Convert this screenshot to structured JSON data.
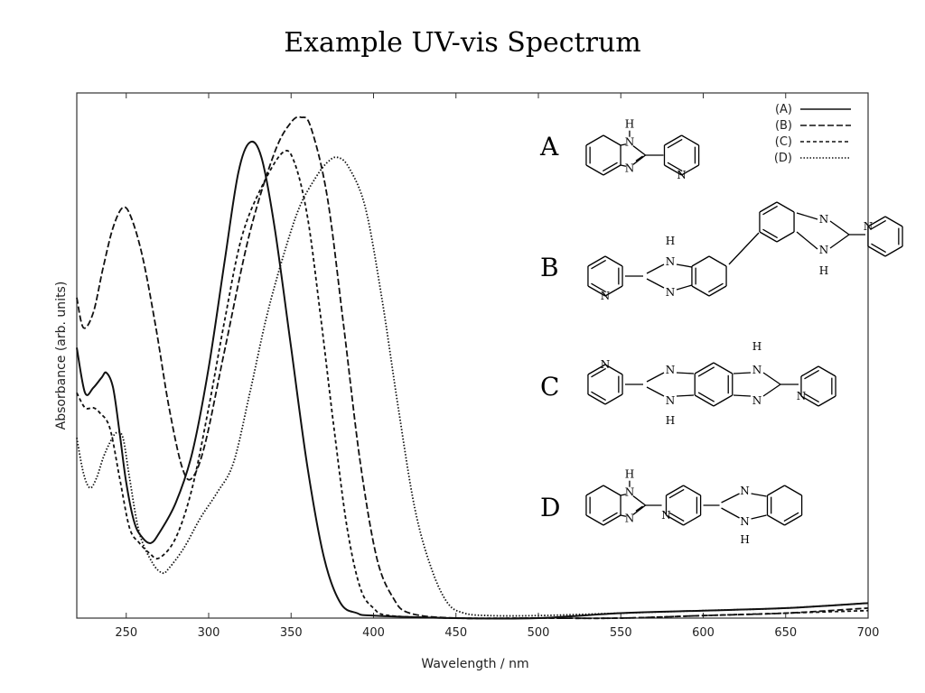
{
  "chart_data": {
    "type": "line",
    "title": "Example UV-vis Spectrum",
    "xlabel": "Wavelength  / nm",
    "ylabel": "Absorbance  (arb. units)",
    "xlim": [
      220,
      700
    ],
    "ylim": [
      0,
      1.0
    ],
    "xticks": [
      250,
      300,
      350,
      400,
      450,
      500,
      550,
      600,
      650,
      700
    ],
    "legend_position": "top-right",
    "series": [
      {
        "name": "(A)",
        "dash": "solid",
        "points": [
          [
            220,
            0.54
          ],
          [
            225,
            0.45
          ],
          [
            230,
            0.46
          ],
          [
            235,
            0.48
          ],
          [
            238,
            0.49
          ],
          [
            242,
            0.46
          ],
          [
            246,
            0.37
          ],
          [
            250,
            0.27
          ],
          [
            255,
            0.19
          ],
          [
            260,
            0.16
          ],
          [
            265,
            0.15
          ],
          [
            270,
            0.17
          ],
          [
            280,
            0.23
          ],
          [
            290,
            0.33
          ],
          [
            300,
            0.5
          ],
          [
            310,
            0.72
          ],
          [
            318,
            0.89
          ],
          [
            325,
            0.95
          ],
          [
            332,
            0.92
          ],
          [
            340,
            0.78
          ],
          [
            350,
            0.54
          ],
          [
            360,
            0.3
          ],
          [
            370,
            0.12
          ],
          [
            380,
            0.03
          ],
          [
            390,
            0.01
          ],
          [
            400,
            0.005
          ],
          [
            450,
            0.0
          ],
          [
            500,
            0.0
          ],
          [
            550,
            0.01
          ],
          [
            600,
            0.015
          ],
          [
            650,
            0.02
          ],
          [
            700,
            0.03
          ]
        ]
      },
      {
        "name": "(B)",
        "dash": "dashed",
        "points": [
          [
            220,
            0.64
          ],
          [
            224,
            0.58
          ],
          [
            230,
            0.61
          ],
          [
            236,
            0.7
          ],
          [
            242,
            0.78
          ],
          [
            248,
            0.82
          ],
          [
            253,
            0.8
          ],
          [
            260,
            0.72
          ],
          [
            268,
            0.58
          ],
          [
            276,
            0.42
          ],
          [
            284,
            0.3
          ],
          [
            290,
            0.28
          ],
          [
            298,
            0.35
          ],
          [
            310,
            0.54
          ],
          [
            325,
            0.77
          ],
          [
            340,
            0.93
          ],
          [
            350,
            0.99
          ],
          [
            356,
            1.0
          ],
          [
            362,
            0.98
          ],
          [
            372,
            0.84
          ],
          [
            382,
            0.58
          ],
          [
            392,
            0.31
          ],
          [
            402,
            0.12
          ],
          [
            412,
            0.04
          ],
          [
            422,
            0.01
          ],
          [
            450,
            0.0
          ],
          [
            500,
            0.0
          ],
          [
            550,
            0.0
          ],
          [
            600,
            0.005
          ],
          [
            650,
            0.01
          ],
          [
            700,
            0.02
          ]
        ]
      },
      {
        "name": "(C)",
        "dash": "short-dashed",
        "points": [
          [
            220,
            0.45
          ],
          [
            225,
            0.42
          ],
          [
            230,
            0.42
          ],
          [
            234,
            0.41
          ],
          [
            240,
            0.38
          ],
          [
            246,
            0.28
          ],
          [
            252,
            0.18
          ],
          [
            258,
            0.15
          ],
          [
            264,
            0.13
          ],
          [
            270,
            0.12
          ],
          [
            280,
            0.16
          ],
          [
            290,
            0.26
          ],
          [
            300,
            0.42
          ],
          [
            310,
            0.6
          ],
          [
            320,
            0.76
          ],
          [
            332,
            0.86
          ],
          [
            345,
            0.93
          ],
          [
            352,
            0.91
          ],
          [
            360,
            0.8
          ],
          [
            368,
            0.6
          ],
          [
            376,
            0.38
          ],
          [
            384,
            0.18
          ],
          [
            392,
            0.06
          ],
          [
            400,
            0.02
          ],
          [
            410,
            0.005
          ],
          [
            450,
            0.0
          ],
          [
            500,
            0.0
          ],
          [
            550,
            0.0
          ],
          [
            600,
            0.005
          ],
          [
            650,
            0.01
          ],
          [
            700,
            0.015
          ]
        ]
      },
      {
        "name": "(D)",
        "dash": "dotted",
        "points": [
          [
            220,
            0.36
          ],
          [
            224,
            0.29
          ],
          [
            228,
            0.26
          ],
          [
            232,
            0.28
          ],
          [
            236,
            0.32
          ],
          [
            240,
            0.35
          ],
          [
            244,
            0.37
          ],
          [
            248,
            0.36
          ],
          [
            252,
            0.28
          ],
          [
            258,
            0.17
          ],
          [
            266,
            0.11
          ],
          [
            272,
            0.09
          ],
          [
            276,
            0.1
          ],
          [
            285,
            0.14
          ],
          [
            295,
            0.2
          ],
          [
            305,
            0.25
          ],
          [
            315,
            0.31
          ],
          [
            325,
            0.45
          ],
          [
            335,
            0.6
          ],
          [
            345,
            0.72
          ],
          [
            355,
            0.82
          ],
          [
            365,
            0.88
          ],
          [
            372,
            0.91
          ],
          [
            378,
            0.92
          ],
          [
            385,
            0.9
          ],
          [
            395,
            0.82
          ],
          [
            405,
            0.64
          ],
          [
            415,
            0.42
          ],
          [
            425,
            0.22
          ],
          [
            435,
            0.1
          ],
          [
            445,
            0.03
          ],
          [
            455,
            0.01
          ],
          [
            470,
            0.005
          ],
          [
            500,
            0.005
          ],
          [
            550,
            0.01
          ],
          [
            600,
            0.015
          ],
          [
            650,
            0.02
          ],
          [
            700,
            0.03
          ]
        ]
      }
    ],
    "molecules": [
      {
        "label": "A"
      },
      {
        "label": "B"
      },
      {
        "label": "C"
      },
      {
        "label": "D"
      }
    ],
    "atom_labels": {
      "n": "N",
      "h": "H"
    }
  },
  "colors": {
    "curve": "#111111",
    "axis": "#333333",
    "background": "#ffffff"
  }
}
